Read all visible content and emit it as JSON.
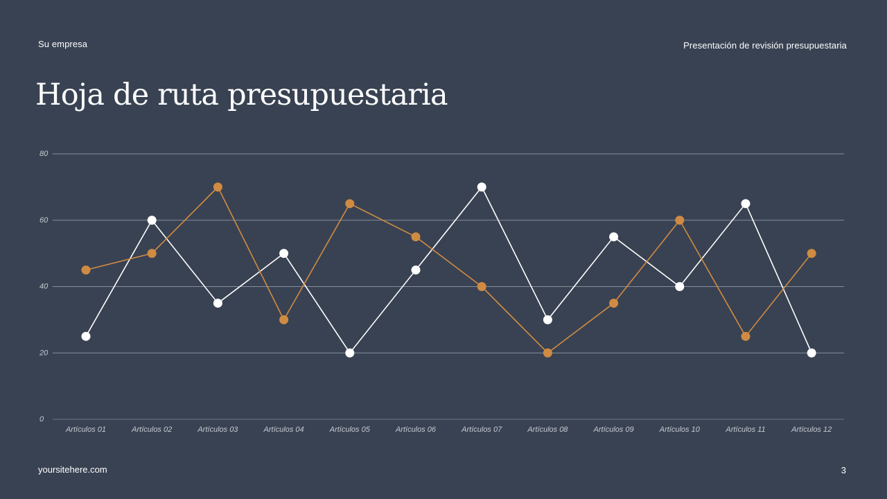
{
  "header": {
    "company": "Su empresa",
    "presentation": "Presentación de revisión presupuestaria"
  },
  "title": "Hoja de ruta presupuestaria",
  "footer": {
    "website": "yoursitehere.com",
    "page": "3"
  },
  "colors": {
    "background": "#394252",
    "series_orange": "#D08B43",
    "series_white": "#FFFFFF",
    "grid": "#9AA1AD"
  },
  "chart_data": {
    "type": "line",
    "categories": [
      "Artículos 01",
      "Artículos 02",
      "Artículos 03",
      "Artículos 04",
      "Artículos 05",
      "Artículos 06",
      "Artículos 07",
      "Artículos 08",
      "Artículos 09",
      "Artículos 10",
      "Artículos 11",
      "Artículos 12"
    ],
    "series": [
      {
        "values": [
          25,
          60,
          35,
          50,
          20,
          45,
          70,
          30,
          55,
          40,
          65,
          20
        ],
        "color": "#FFFFFF"
      },
      {
        "values": [
          45,
          50,
          70,
          30,
          65,
          55,
          40,
          20,
          35,
          60,
          25,
          50
        ],
        "color": "#D08B43"
      }
    ],
    "yticks": [
      0,
      20,
      40,
      60,
      80
    ],
    "ylim": [
      0,
      80
    ],
    "grid": true,
    "title": "",
    "xlabel": "",
    "ylabel": ""
  }
}
